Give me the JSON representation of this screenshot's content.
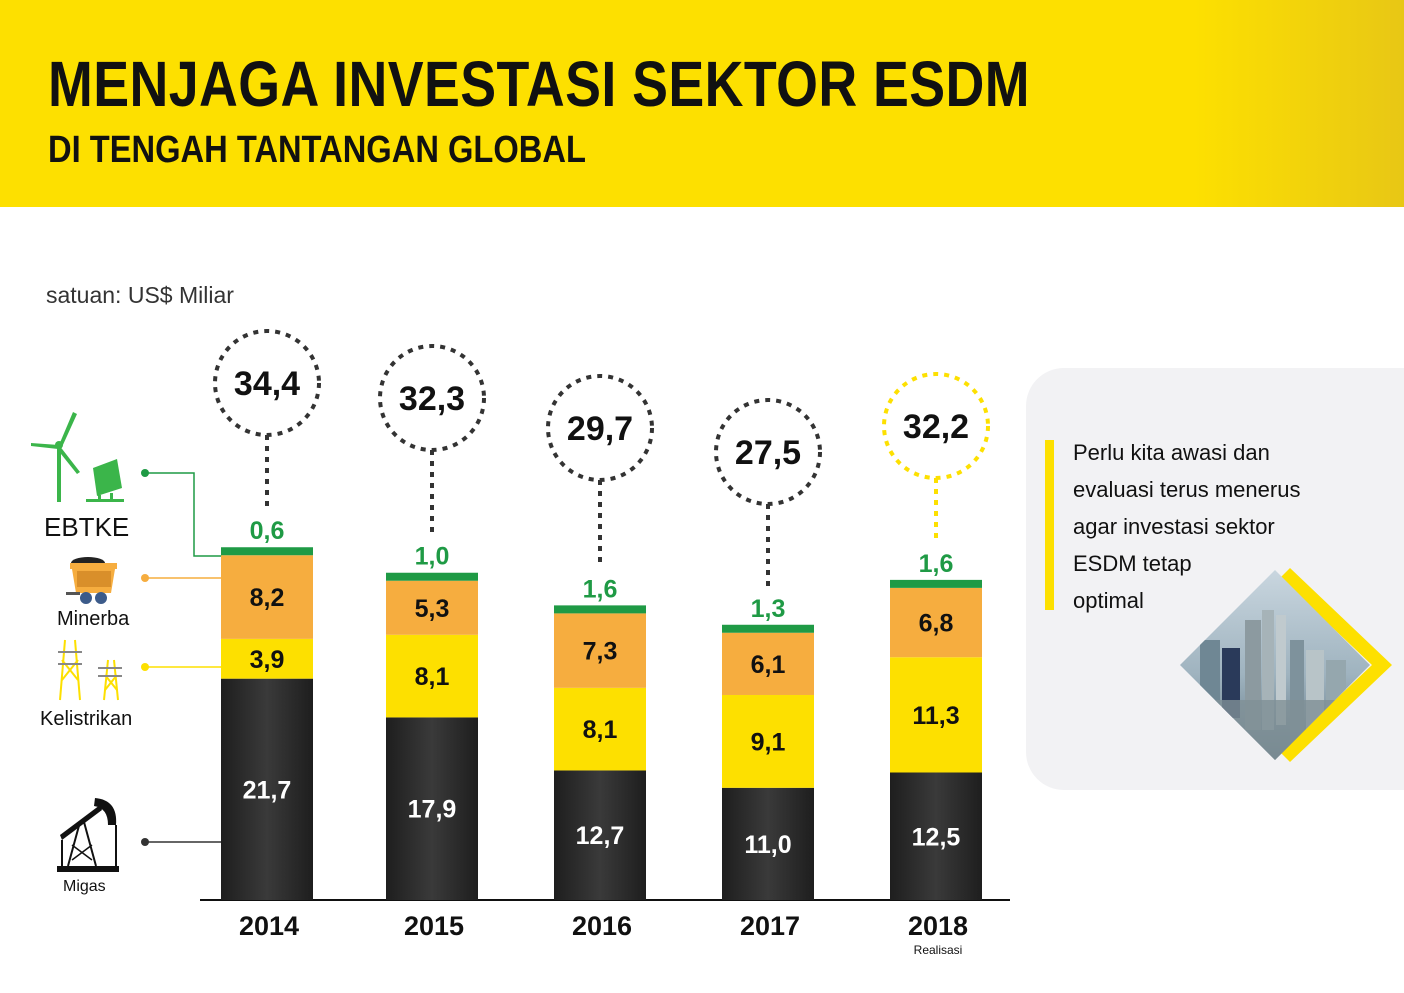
{
  "header": {
    "title": "MENJAGA INVESTASI SEKTOR ESDM",
    "subtitle": "DI TENGAH TANTANGAN GLOBAL"
  },
  "unit_label": "satuan: US$ Miliar",
  "legend": {
    "ebtke": "EBTKE",
    "minerba": "Minerba",
    "kelistrikan": "Kelistrikan",
    "migas": "Migas"
  },
  "info": {
    "text": "Perlu kita awasi dan evaluasi terus menerus agar investasi sektor ESDM tetap optimal",
    "lines": [
      "Perlu kita awasi dan",
      "evaluasi terus menerus",
      "agar investasi sektor",
      "ESDM tetap",
      "optimal"
    ]
  },
  "colors": {
    "header_yellow": "#fde000",
    "migas": "#2b2b2b",
    "kelistrikan": "#fde000",
    "minerba": "#f6ad3f",
    "ebtke": "#1f9a45",
    "circle_default": "#333333",
    "circle_highlight": "#fde000"
  },
  "chart_data": {
    "type": "bar",
    "stacked": true,
    "title": "MENJAGA INVESTASI SEKTOR ESDM",
    "subtitle": "DI TENGAH TANTANGAN GLOBAL",
    "ylabel": "satuan: US$ Miliar",
    "xlabel": "",
    "categories": [
      "2014",
      "2015",
      "2016",
      "2017",
      "2018"
    ],
    "category_notes": [
      "",
      "",
      "",
      "",
      "Realisasi"
    ],
    "series": [
      {
        "name": "Migas",
        "values": [
          21.7,
          17.9,
          12.7,
          11.0,
          12.5
        ],
        "labels": [
          "21,7",
          "17,9",
          "12,7",
          "11,0",
          "12,5"
        ]
      },
      {
        "name": "Kelistrikan",
        "values": [
          3.9,
          8.1,
          8.1,
          9.1,
          11.3
        ],
        "labels": [
          "3,9",
          "8,1",
          "8,1",
          "9,1",
          "11,3"
        ]
      },
      {
        "name": "Minerba",
        "values": [
          8.2,
          5.3,
          7.3,
          6.1,
          6.8
        ],
        "labels": [
          "8,2",
          "5,3",
          "7,3",
          "6,1",
          "6,8"
        ]
      },
      {
        "name": "EBTKE",
        "values": [
          0.6,
          1.0,
          1.6,
          1.3,
          1.6
        ],
        "labels": [
          "0,6",
          "1,0",
          "1,6",
          "1,3",
          "1,6"
        ]
      }
    ],
    "totals": [
      34.4,
      32.3,
      29.7,
      27.5,
      32.2
    ],
    "total_labels": [
      "34,4",
      "32,3",
      "29,7",
      "27,5",
      "32,2"
    ],
    "highlighted_category": "2018",
    "grid": false,
    "legend_position": "left"
  }
}
